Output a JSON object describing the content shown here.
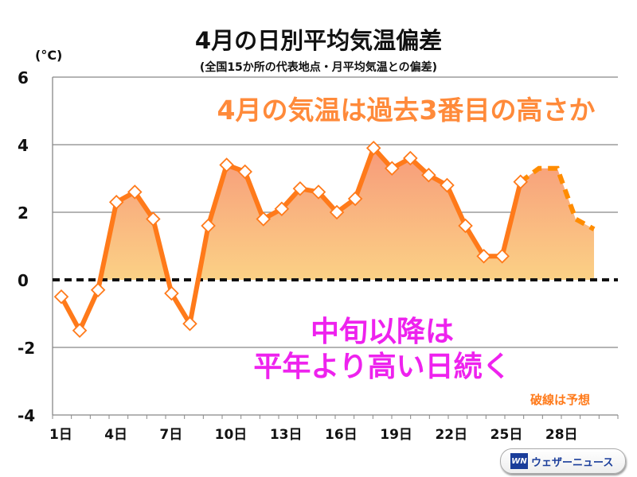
{
  "chart_data": {
    "type": "area",
    "title": "4月の日別平均気温偏差",
    "subtitle": "(全国15か所の代表地点・月平均気温との偏差)",
    "ylabel": "(°C)",
    "ylim": [
      -4,
      6
    ],
    "yticks": [
      -4,
      -2,
      0,
      2,
      4,
      6
    ],
    "xlim": [
      1,
      30
    ],
    "xtick_labels": [
      {
        "day": 1,
        "label": "1日"
      },
      {
        "day": 4,
        "label": "4日"
      },
      {
        "day": 7,
        "label": "7日"
      },
      {
        "day": 10,
        "label": "10日"
      },
      {
        "day": 13,
        "label": "13日"
      },
      {
        "day": 16,
        "label": "16日"
      },
      {
        "day": 19,
        "label": "19日"
      },
      {
        "day": 22,
        "label": "22日"
      },
      {
        "day": 25,
        "label": "25日"
      },
      {
        "day": 28,
        "label": "28日"
      }
    ],
    "grid": true,
    "series": [
      {
        "name": "observed",
        "style": "solid-markers",
        "x": [
          1,
          2,
          3,
          4,
          5,
          6,
          7,
          8,
          9,
          10,
          11,
          12,
          13,
          14,
          15,
          16,
          17,
          18,
          19,
          20,
          21,
          22,
          23,
          24,
          25,
          26
        ],
        "values": [
          -0.5,
          -1.5,
          -0.3,
          2.3,
          2.6,
          1.8,
          -0.4,
          -1.3,
          1.6,
          3.4,
          3.2,
          1.8,
          2.1,
          2.7,
          2.6,
          2.0,
          2.4,
          3.9,
          3.3,
          3.6,
          3.1,
          2.8,
          1.6,
          0.7,
          0.7,
          2.9
        ]
      },
      {
        "name": "forecast",
        "style": "dashed",
        "x": [
          26,
          27,
          28,
          29,
          30
        ],
        "values": [
          2.9,
          3.3,
          3.3,
          1.8,
          1.5
        ]
      }
    ],
    "annotations": [
      "4月の気温は過去3番目の高さか",
      "中旬以降は",
      "平年より高い日続く",
      "破線は予想"
    ]
  },
  "colors": {
    "line": "#ff7a1a",
    "dash": "#ff8c00",
    "fill_top": "#f9a07a",
    "fill_bottom": "#fde68a",
    "callout1": "#ff8a3a",
    "callout2": "#ee22ee"
  },
  "logo": {
    "mark": "WN",
    "text": "ウェザーニュース"
  }
}
